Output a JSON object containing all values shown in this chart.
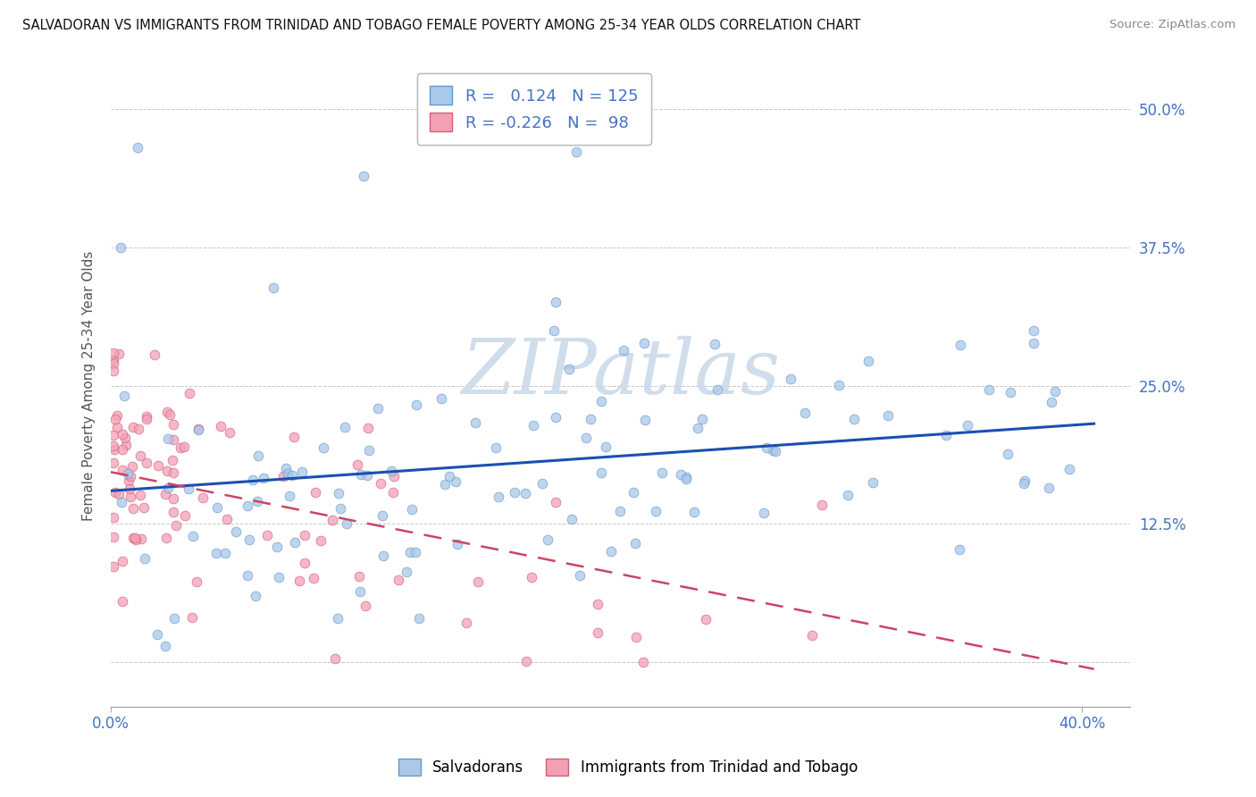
{
  "title": "SALVADORAN VS IMMIGRANTS FROM TRINIDAD AND TOBAGO FEMALE POVERTY AMONG 25-34 YEAR OLDS CORRELATION CHART",
  "source": "Source: ZipAtlas.com",
  "ylabel": "Female Poverty Among 25-34 Year Olds",
  "xlim": [
    0.0,
    0.42
  ],
  "ylim": [
    -0.04,
    0.54
  ],
  "blue_R": 0.124,
  "blue_N": 125,
  "pink_R": -0.226,
  "pink_N": 98,
  "blue_scatter_color": "#aac8e8",
  "blue_scatter_edge": "#6699cc",
  "pink_scatter_color": "#f4a0b4",
  "pink_scatter_edge": "#d06080",
  "blue_line_color": "#1a50b0",
  "pink_line_color": "#cc4466",
  "legend_blue_label": "Salvadorans",
  "legend_pink_label": "Immigrants from Trinidad and Tobago",
  "watermark": "ZIPatlas",
  "background_color": "#ffffff",
  "axis_color": "#4472c4",
  "ylabel_color": "#555555"
}
